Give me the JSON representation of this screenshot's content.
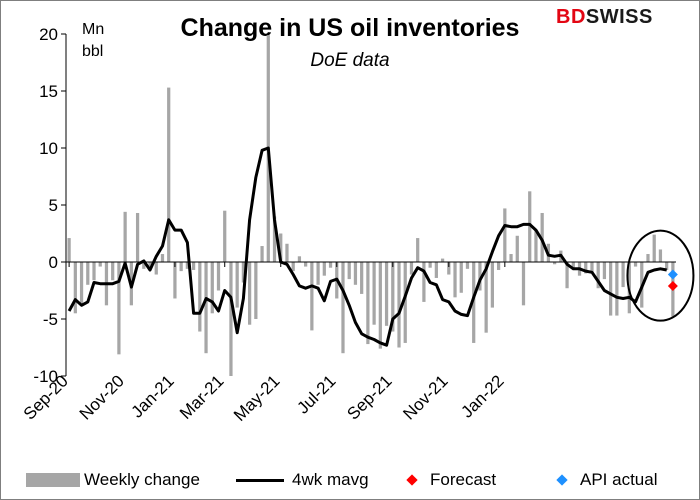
{
  "brand": {
    "logo_text": "BDSWISS",
    "logo_accent": "#e30613"
  },
  "chart_data": {
    "type": "bar",
    "title": "Change in US oil inventories",
    "subtitle": "DoE data",
    "ylabel_line1": "Mn",
    "ylabel_line2": "bbl",
    "ylim": [
      -10,
      20
    ],
    "yticks": [
      20,
      15,
      10,
      5,
      0,
      -5,
      -10
    ],
    "x_tick_labels": [
      "Sep-20",
      "Nov-20",
      "Jan-21",
      "Mar-21",
      "May-21",
      "Jul-21",
      "Sep-21",
      "Nov-21",
      "Jan-22"
    ],
    "x_tick_weeks": [
      0,
      9,
      17,
      25,
      34,
      43,
      52,
      61,
      70
    ],
    "grid": false,
    "legend_position": "bottom",
    "series": [
      {
        "name": "Weekly change",
        "type": "bar",
        "color": "#a6a6a6",
        "values": [
          2.1,
          -4.5,
          -3.8,
          -2.0,
          -1.6,
          -0.4,
          -3.8,
          -1.6,
          -8.1,
          4.4,
          -3.8,
          4.3,
          -0.6,
          -0.4,
          -1.1,
          0.7,
          15.3,
          -3.2,
          -0.8,
          -0.6,
          -0.7,
          -6.1,
          -8.0,
          -4.5,
          -2.5,
          4.5,
          -10.0,
          -4.0,
          -1.8,
          -5.5,
          -5.0,
          1.4,
          19.9,
          4.0,
          2.5,
          1.6,
          -0.8,
          0.5,
          -0.4,
          -6.0,
          -2.0,
          -1.2,
          -0.5,
          -3.2,
          -8.0,
          -1.5,
          -2.0,
          -2.8,
          -7.2,
          -5.5,
          -7.6,
          -5.6,
          -6.1,
          -7.5,
          -7.1,
          -1.1,
          2.1,
          -3.5,
          -0.5,
          -1.4,
          0.3,
          -1.1,
          -3.1,
          -2.7,
          -0.6,
          -7.1,
          -2.5,
          -6.2,
          -4.0,
          -0.7,
          4.7,
          0.7,
          2.3,
          -3.8,
          6.2,
          2.8,
          4.3,
          1.6,
          -0.2,
          1.0,
          -2.3,
          -0.6,
          -1.2,
          -1.0,
          -1.0,
          -2.3,
          -1.5,
          -4.7,
          -4.7,
          -2.2,
          -4.5,
          -0.4,
          -4.0,
          0.7,
          2.4,
          1.1,
          -0.7,
          -4.8
        ]
      },
      {
        "name": "4wk mavg",
        "type": "line",
        "color": "#000000",
        "values": [
          -4.3,
          -3.3,
          -3.8,
          -3.5,
          -1.8,
          -1.9,
          -1.9,
          -1.9,
          -1.7,
          -0.1,
          -2.2,
          -0.2,
          0.1,
          -0.7,
          0.5,
          1.4,
          3.7,
          2.8,
          2.8,
          1.7,
          -4.5,
          -4.5,
          -3.2,
          -3.5,
          -4.3,
          -2.5,
          -3.1,
          -6.2,
          -3.2,
          3.7,
          7.4,
          9.8,
          10.0,
          3.7,
          0.0,
          -0.2,
          -1.1,
          -2.1,
          -2.3,
          -2.1,
          -2.3,
          -3.4,
          -1.7,
          -1.5,
          -2.5,
          -3.8,
          -5.3,
          -6.3,
          -6.6,
          -6.8,
          -7.1,
          -7.3,
          -5.0,
          -4.5,
          -3.0,
          -1.4,
          -0.5,
          -0.8,
          -1.8,
          -2.0,
          -3.3,
          -3.5,
          -4.3,
          -4.6,
          -4.7,
          -3.1,
          -1.6,
          -0.6,
          0.9,
          2.3,
          3.2,
          3.1,
          3.1,
          3.3,
          3.3,
          2.8,
          1.9,
          0.6,
          0.5,
          0.6,
          -0.2,
          -0.6,
          -0.6,
          -0.8,
          -0.9,
          -1.7,
          -2.5,
          -2.8,
          -3.1,
          -3.2,
          -3.1,
          -3.5,
          -2.2,
          -0.9,
          -0.7,
          -0.6,
          -0.7
        ]
      },
      {
        "name": "Forecast",
        "type": "scatter",
        "color": "#ff0000",
        "points": [
          {
            "week": 97,
            "value": -2.1
          }
        ]
      },
      {
        "name": "API actual",
        "type": "scatter",
        "color": "#1e90ff",
        "points": [
          {
            "week": 97,
            "value": -1.1
          }
        ]
      }
    ],
    "annotations": [
      {
        "type": "circle",
        "around": "latest week"
      }
    ]
  }
}
